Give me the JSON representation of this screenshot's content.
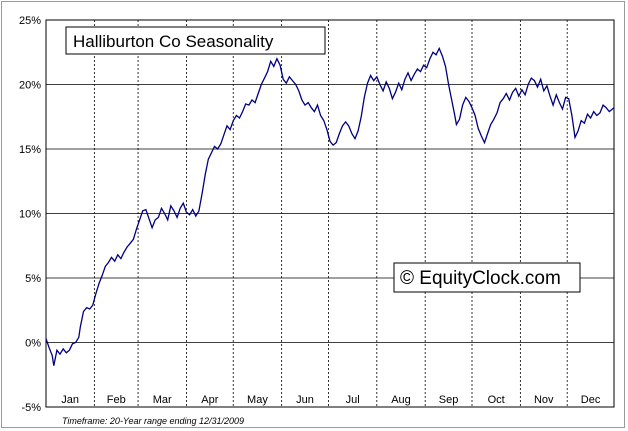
{
  "chart_data": {
    "type": "line",
    "title": "Halliburton Co Seasonality",
    "watermark": "© EquityClock.com",
    "footnote": "Timeframe: 20-Year range ending 12/31/2009",
    "xlabel": "",
    "ylabel": "",
    "ylim": [
      -5,
      25
    ],
    "yticks": [
      -5,
      0,
      5,
      10,
      15,
      20,
      25
    ],
    "ytick_labels": [
      "-5%",
      "0%",
      "5%",
      "10%",
      "15%",
      "20%",
      "25%"
    ],
    "months": [
      "Jan",
      "Feb",
      "Mar",
      "Apr",
      "May",
      "Jun",
      "Jul",
      "Aug",
      "Sep",
      "Oct",
      "Nov",
      "Dec"
    ],
    "x_unit": "day of year",
    "xlim": [
      1,
      365
    ],
    "line_color": "#000080",
    "grid": {
      "horizontal": "solid",
      "vertical": "dotted"
    },
    "series": [
      {
        "points": [
          [
            1,
            0.3
          ],
          [
            3,
            -0.4
          ],
          [
            5,
            -1.0
          ],
          [
            6,
            -1.8
          ],
          [
            8,
            -0.6
          ],
          [
            10,
            -0.9
          ],
          [
            12,
            -0.5
          ],
          [
            14,
            -0.8
          ],
          [
            16,
            -0.6
          ],
          [
            18,
            -0.1
          ],
          [
            20,
            0.0
          ],
          [
            22,
            0.4
          ],
          [
            23,
            1.2
          ],
          [
            25,
            2.4
          ],
          [
            27,
            2.7
          ],
          [
            29,
            2.6
          ],
          [
            31,
            2.9
          ],
          [
            33,
            3.8
          ],
          [
            35,
            4.6
          ],
          [
            37,
            5.2
          ],
          [
            39,
            5.9
          ],
          [
            41,
            6.2
          ],
          [
            43,
            6.6
          ],
          [
            45,
            6.3
          ],
          [
            47,
            6.8
          ],
          [
            49,
            6.5
          ],
          [
            51,
            7.0
          ],
          [
            53,
            7.4
          ],
          [
            55,
            7.7
          ],
          [
            57,
            8.0
          ],
          [
            59,
            8.8
          ],
          [
            61,
            9.5
          ],
          [
            63,
            10.2
          ],
          [
            65,
            10.3
          ],
          [
            67,
            9.6
          ],
          [
            69,
            8.9
          ],
          [
            71,
            9.5
          ],
          [
            73,
            9.7
          ],
          [
            75,
            10.4
          ],
          [
            77,
            10.0
          ],
          [
            79,
            9.5
          ],
          [
            81,
            10.6
          ],
          [
            83,
            10.2
          ],
          [
            85,
            9.7
          ],
          [
            87,
            10.4
          ],
          [
            89,
            10.8
          ],
          [
            91,
            10.1
          ],
          [
            93,
            9.9
          ],
          [
            95,
            10.3
          ],
          [
            97,
            9.8
          ],
          [
            99,
            10.2
          ],
          [
            101,
            11.5
          ],
          [
            103,
            13.0
          ],
          [
            105,
            14.2
          ],
          [
            107,
            14.7
          ],
          [
            109,
            15.2
          ],
          [
            111,
            15.0
          ],
          [
            113,
            15.4
          ],
          [
            115,
            16.1
          ],
          [
            117,
            16.8
          ],
          [
            119,
            16.5
          ],
          [
            121,
            17.2
          ],
          [
            123,
            17.6
          ],
          [
            125,
            17.4
          ],
          [
            127,
            17.9
          ],
          [
            129,
            18.5
          ],
          [
            131,
            18.4
          ],
          [
            133,
            18.8
          ],
          [
            135,
            18.6
          ],
          [
            137,
            19.3
          ],
          [
            139,
            20.0
          ],
          [
            141,
            20.5
          ],
          [
            143,
            21.0
          ],
          [
            145,
            21.8
          ],
          [
            147,
            21.4
          ],
          [
            149,
            22.0
          ],
          [
            151,
            21.5
          ],
          [
            153,
            20.4
          ],
          [
            155,
            20.1
          ],
          [
            157,
            20.6
          ],
          [
            159,
            20.3
          ],
          [
            161,
            20.0
          ],
          [
            163,
            19.5
          ],
          [
            165,
            18.8
          ],
          [
            167,
            18.4
          ],
          [
            169,
            18.6
          ],
          [
            171,
            18.2
          ],
          [
            173,
            17.9
          ],
          [
            175,
            18.4
          ],
          [
            177,
            17.6
          ],
          [
            179,
            17.2
          ],
          [
            181,
            16.5
          ],
          [
            183,
            15.6
          ],
          [
            185,
            15.3
          ],
          [
            187,
            15.5
          ],
          [
            189,
            16.2
          ],
          [
            191,
            16.8
          ],
          [
            193,
            17.1
          ],
          [
            195,
            16.8
          ],
          [
            197,
            16.2
          ],
          [
            199,
            15.8
          ],
          [
            201,
            16.4
          ],
          [
            203,
            17.5
          ],
          [
            205,
            19.0
          ],
          [
            207,
            20.1
          ],
          [
            209,
            20.7
          ],
          [
            211,
            20.3
          ],
          [
            213,
            20.6
          ],
          [
            215,
            20.0
          ],
          [
            217,
            19.5
          ],
          [
            219,
            20.2
          ],
          [
            221,
            19.7
          ],
          [
            223,
            18.9
          ],
          [
            225,
            19.4
          ],
          [
            227,
            20.1
          ],
          [
            229,
            19.6
          ],
          [
            231,
            20.4
          ],
          [
            233,
            20.9
          ],
          [
            235,
            20.3
          ],
          [
            237,
            20.8
          ],
          [
            239,
            21.2
          ],
          [
            241,
            21.0
          ],
          [
            243,
            21.5
          ],
          [
            245,
            21.3
          ],
          [
            247,
            22.0
          ],
          [
            249,
            22.5
          ],
          [
            251,
            22.3
          ],
          [
            253,
            22.8
          ],
          [
            255,
            22.2
          ],
          [
            257,
            21.4
          ],
          [
            259,
            20.0
          ],
          [
            261,
            18.8
          ],
          [
            263,
            17.6
          ],
          [
            264,
            16.9
          ],
          [
            266,
            17.3
          ],
          [
            268,
            18.4
          ],
          [
            270,
            19.0
          ],
          [
            272,
            18.7
          ],
          [
            274,
            18.2
          ],
          [
            276,
            17.6
          ],
          [
            278,
            16.6
          ],
          [
            280,
            16.0
          ],
          [
            282,
            15.5
          ],
          [
            284,
            16.2
          ],
          [
            286,
            16.9
          ],
          [
            288,
            17.3
          ],
          [
            290,
            17.8
          ],
          [
            292,
            18.6
          ],
          [
            294,
            18.9
          ],
          [
            296,
            19.3
          ],
          [
            298,
            18.8
          ],
          [
            300,
            19.4
          ],
          [
            302,
            19.7
          ],
          [
            304,
            19.1
          ],
          [
            306,
            19.6
          ],
          [
            308,
            19.2
          ],
          [
            310,
            20.0
          ],
          [
            312,
            20.5
          ],
          [
            314,
            20.3
          ],
          [
            316,
            19.8
          ],
          [
            318,
            20.4
          ],
          [
            320,
            19.5
          ],
          [
            322,
            19.9
          ],
          [
            324,
            19.1
          ],
          [
            326,
            18.4
          ],
          [
            328,
            19.2
          ],
          [
            330,
            18.6
          ],
          [
            332,
            18.1
          ],
          [
            334,
            19.0
          ],
          [
            336,
            18.9
          ],
          [
            338,
            17.6
          ],
          [
            340,
            15.9
          ],
          [
            342,
            16.4
          ],
          [
            344,
            17.2
          ],
          [
            346,
            17.0
          ],
          [
            348,
            17.7
          ],
          [
            350,
            17.4
          ],
          [
            352,
            17.9
          ],
          [
            354,
            17.6
          ],
          [
            356,
            17.8
          ],
          [
            358,
            18.4
          ],
          [
            360,
            18.2
          ],
          [
            362,
            17.9
          ],
          [
            365,
            18.2
          ]
        ]
      }
    ]
  }
}
